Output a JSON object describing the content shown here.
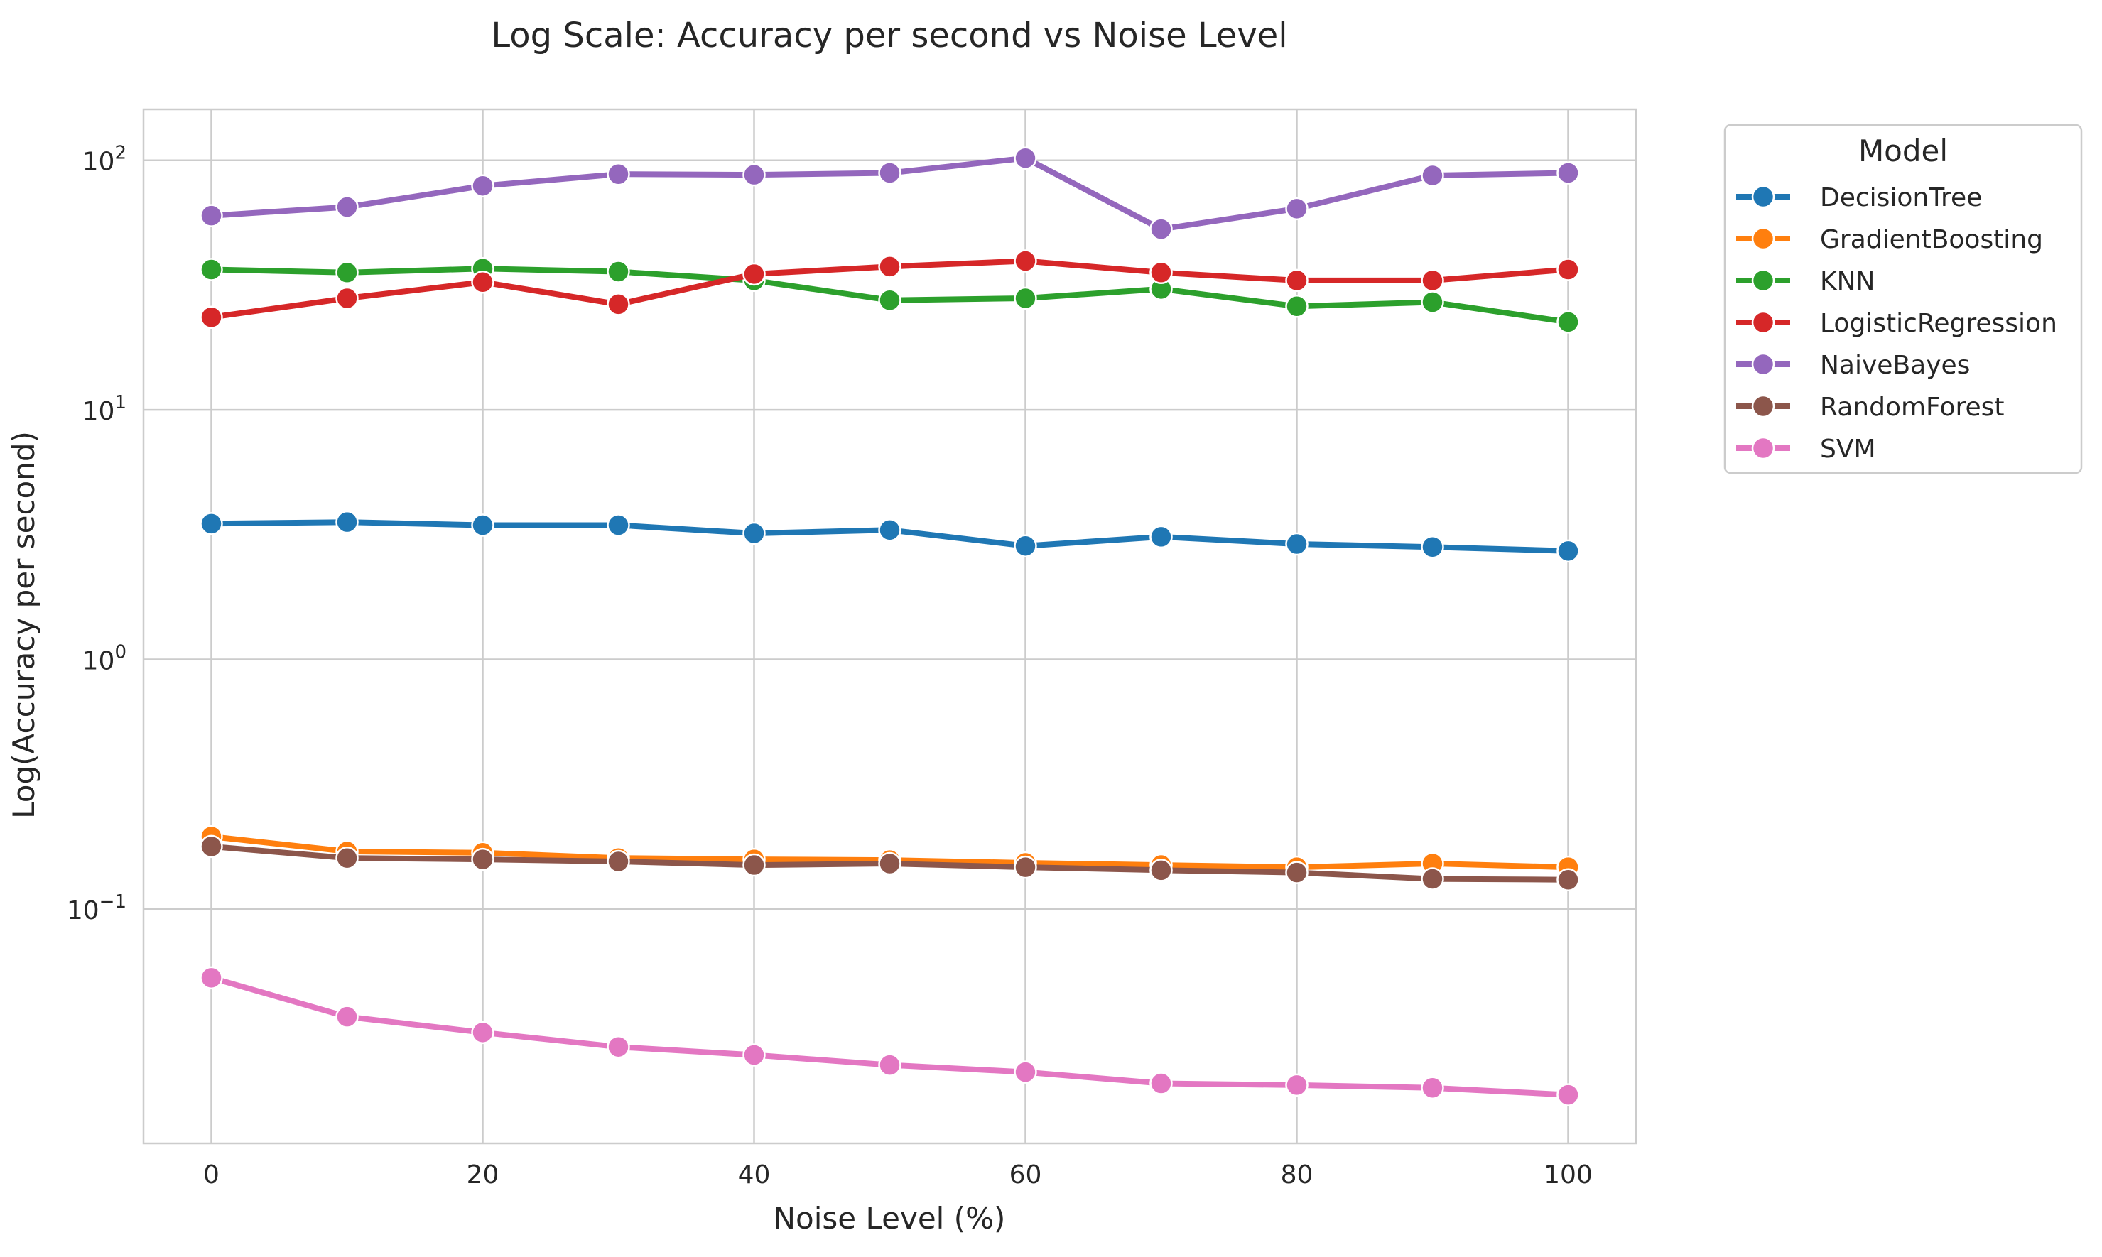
{
  "chart_data": {
    "type": "line",
    "title": "Log Scale: Accuracy per second vs Noise Level",
    "xlabel": "Noise Level (%)",
    "ylabel": "Log(Accuracy per second)",
    "yscale": "log",
    "xlim": [
      -5,
      105
    ],
    "ylim": [
      0.0115,
      160
    ],
    "grid": true,
    "x_ticks": [
      0,
      20,
      40,
      60,
      80,
      100
    ],
    "x_tick_labels": [
      "0",
      "20",
      "40",
      "60",
      "80",
      "100"
    ],
    "y_ticks": [
      {
        "value": 100,
        "base": "10",
        "exp": "2"
      },
      {
        "value": 10,
        "base": "10",
        "exp": "1"
      },
      {
        "value": 1,
        "base": "10",
        "exp": "0"
      },
      {
        "value": 0.1,
        "base": "10",
        "exp": "−1"
      }
    ],
    "legend": {
      "title": "Model",
      "position": "outside-top-right"
    },
    "x": [
      0,
      10,
      20,
      30,
      40,
      50,
      60,
      70,
      80,
      90,
      100
    ],
    "series": [
      {
        "name": "DecisionTree",
        "color": "#1f77b4",
        "values": [
          3.5,
          3.55,
          3.45,
          3.45,
          3.2,
          3.3,
          2.85,
          3.1,
          2.9,
          2.82,
          2.72
        ]
      },
      {
        "name": "GradientBoosting",
        "color": "#ff7f0e",
        "values": [
          0.195,
          0.17,
          0.168,
          0.16,
          0.158,
          0.157,
          0.153,
          0.15,
          0.147,
          0.152,
          0.147
        ]
      },
      {
        "name": "KNN",
        "color": "#2ca02c",
        "values": [
          36.5,
          35.5,
          36.8,
          35.8,
          33.0,
          27.5,
          28.0,
          30.5,
          26.0,
          27.0,
          22.5
        ]
      },
      {
        "name": "LogisticRegression",
        "color": "#d62728",
        "values": [
          23.5,
          28.0,
          32.5,
          26.5,
          35.0,
          37.5,
          39.5,
          35.5,
          33.0,
          33.0,
          36.5
        ]
      },
      {
        "name": "NaiveBayes",
        "color": "#9467bd",
        "values": [
          60.0,
          65.0,
          79.0,
          88.0,
          87.5,
          89.0,
          102.0,
          53.0,
          64.0,
          87.0,
          89.0
        ]
      },
      {
        "name": "RandomForest",
        "color": "#8c564b",
        "values": [
          0.178,
          0.16,
          0.158,
          0.155,
          0.15,
          0.152,
          0.147,
          0.143,
          0.14,
          0.132,
          0.131
        ]
      },
      {
        "name": "SVM",
        "color": "#e377c2",
        "values": [
          0.053,
          0.037,
          0.032,
          0.028,
          0.026,
          0.0237,
          0.0222,
          0.02,
          0.0197,
          0.0192,
          0.018
        ]
      }
    ]
  }
}
